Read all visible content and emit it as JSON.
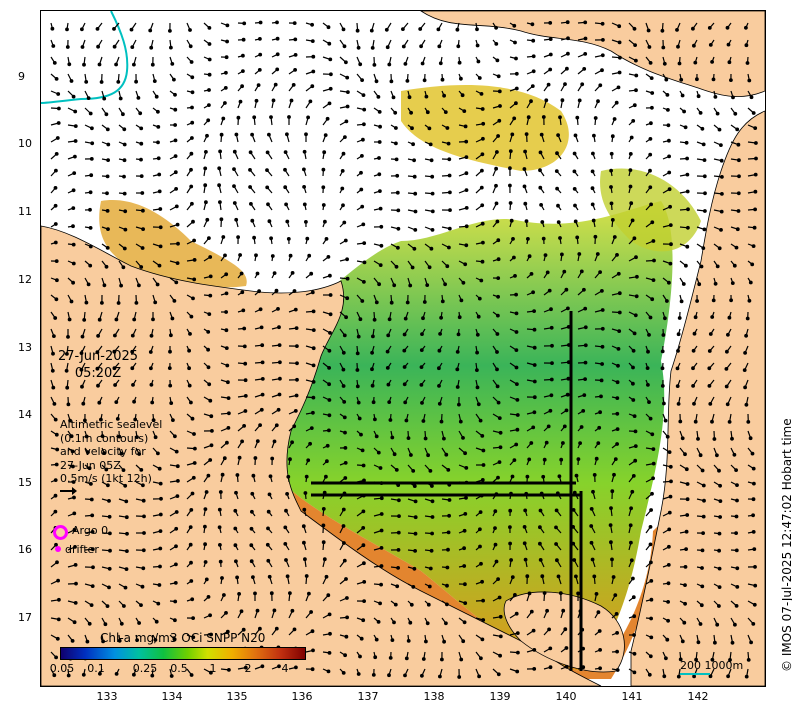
{
  "map": {
    "date_line1": "27-Jun-2025",
    "date_line2": "05:20Z",
    "lat_ticks": [
      "9",
      "10",
      "11",
      "12",
      "13",
      "14",
      "15",
      "16",
      "17"
    ],
    "lon_ticks": [
      "133",
      "134",
      "135",
      "136",
      "137",
      "138",
      "139",
      "140",
      "141",
      "142"
    ],
    "legend_lines": [
      "Altimetric sealevel",
      "(0.1m contours)",
      "and velocity for",
      "27-Jun 05Z",
      "0.5m/s (1kt 12h)"
    ],
    "argo_label": "Argo 0",
    "drifter_label": "drifter",
    "colorbar_title": "Chl-a mg/m3 OCi SNPP N20",
    "colorbar_ticks": [
      "0.05",
      "0.1",
      "0.25",
      "0.5",
      "1",
      "2",
      "4"
    ],
    "scale_label": "200  1000m",
    "credit": "© IMOS 07-Jul-2025 12:47:02 Hobart time",
    "colors": {
      "land": "#f9cc9e",
      "ocean": "#ffffff",
      "argo": "#ff00ff",
      "contour_1000m": "#00c0c0"
    }
  }
}
